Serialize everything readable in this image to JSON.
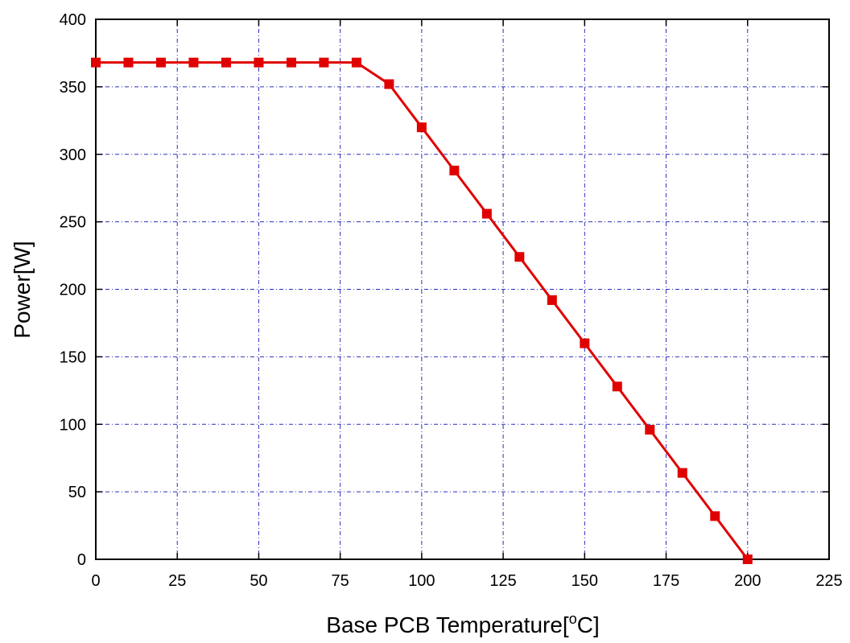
{
  "chart_data": {
    "type": "line",
    "title": "",
    "xlabel": "Base PCB Temperature[",
    "xlabel_superscript": "o",
    "xlabel_suffix": "C]",
    "ylabel": "Power[W]",
    "xlim": [
      0,
      225
    ],
    "ylim": [
      0,
      400
    ],
    "x_ticks": [
      "0",
      "25",
      "50",
      "75",
      "100",
      "125",
      "150",
      "175",
      "200",
      "225"
    ],
    "y_ticks": [
      "0",
      "50",
      "100",
      "150",
      "200",
      "250",
      "300",
      "350",
      "400"
    ],
    "grid": true,
    "grid_style": "dash-dot",
    "legend": "none",
    "colors": {
      "series": "#e00000",
      "grid": "#2c2cbf",
      "axis": "#000000"
    },
    "series": [
      {
        "marker": "square",
        "x": [
          0,
          10,
          20,
          30,
          40,
          50,
          60,
          70,
          80,
          90,
          100,
          110,
          120,
          130,
          140,
          150,
          160,
          170,
          180,
          190,
          200
        ],
        "y": [
          368,
          368,
          368,
          368,
          368,
          368,
          368,
          368,
          368,
          352,
          320,
          288,
          256,
          224,
          192,
          160,
          128,
          96,
          64,
          32,
          0
        ]
      }
    ]
  }
}
